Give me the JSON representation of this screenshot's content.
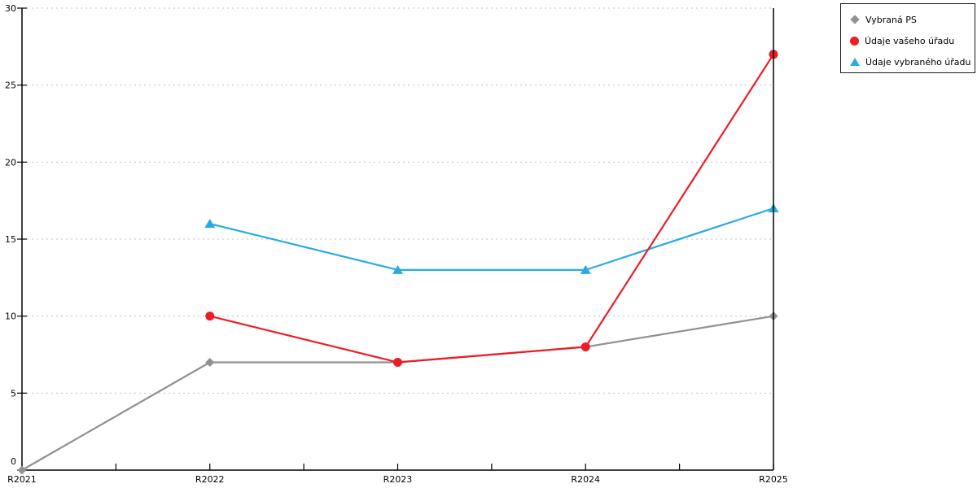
{
  "chart_data": {
    "type": "line",
    "title": "",
    "xlabel": "",
    "ylabel": "",
    "categories": [
      "R2021",
      "R2022",
      "R2023",
      "R2024",
      "R2025"
    ],
    "series": [
      {
        "name": "Vybraná PS",
        "color": "#919191",
        "marker": "diamond",
        "values": [
          0,
          7,
          7,
          8,
          10
        ]
      },
      {
        "name": "Údaje vašeho úřadu",
        "color": "#EE1C25",
        "marker": "circle",
        "values": [
          null,
          10,
          7,
          8,
          27
        ]
      },
      {
        "name": "Údaje vybraného úřadu",
        "color": "#29ABE2",
        "marker": "triangle",
        "values": [
          null,
          16,
          13,
          13,
          17
        ]
      }
    ],
    "ylim": [
      0,
      30
    ],
    "yticks": [
      0,
      5,
      10,
      15,
      20,
      25,
      30
    ],
    "x_minor_ticks_between": 1,
    "grid": "horizontal-dotted",
    "legend_position": "top-right",
    "draw_order": [
      0,
      2,
      1
    ]
  },
  "colors": {
    "axis": "#000000",
    "grid": "#C0C0C0",
    "background": "#FFFFFF",
    "legend_border": "#1A1A1A",
    "text": "#000000"
  }
}
